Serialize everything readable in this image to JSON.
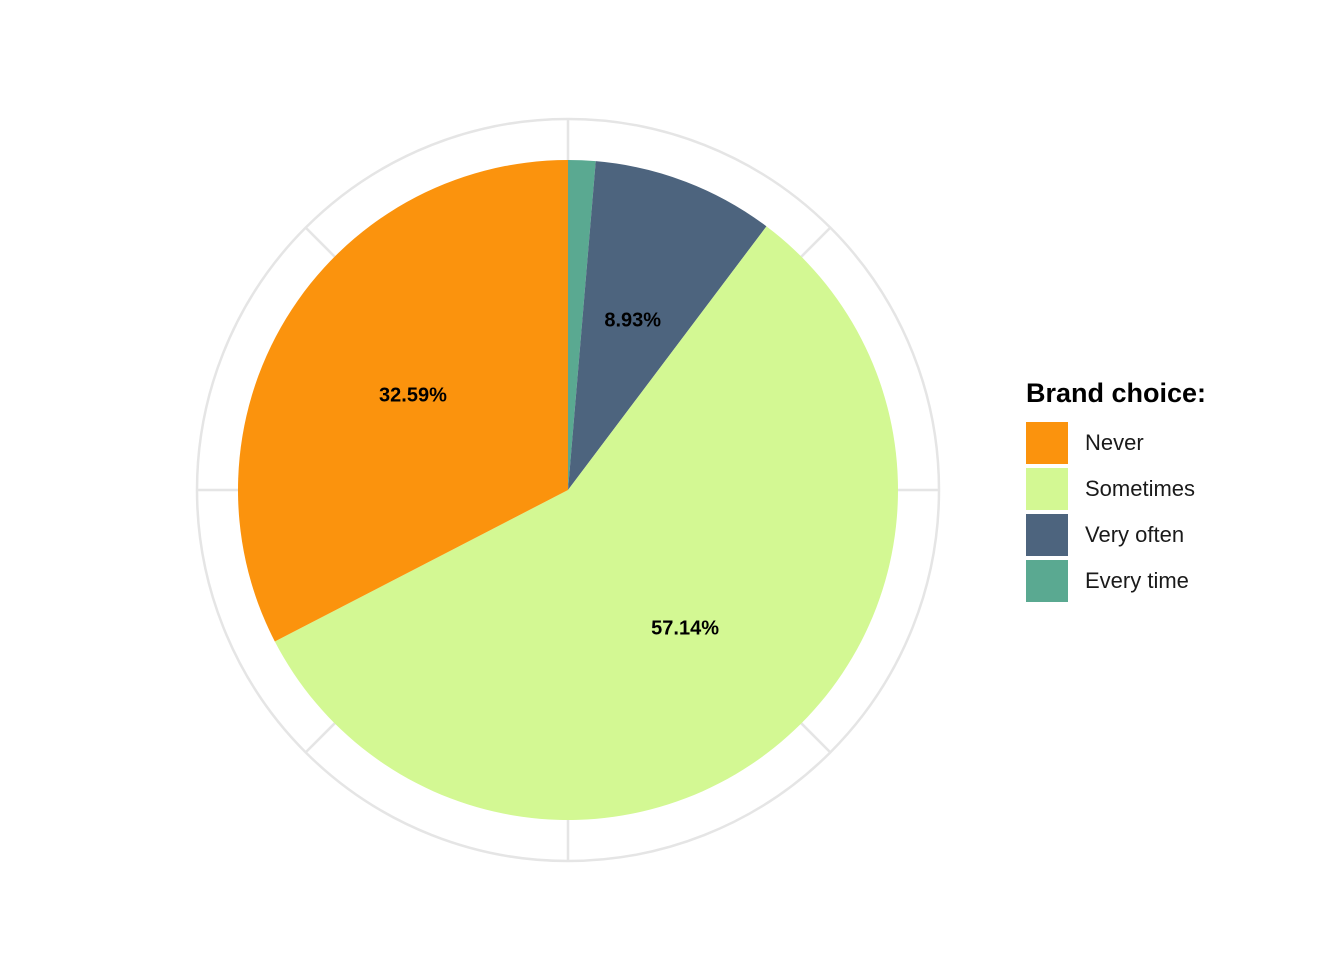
{
  "chart_data": {
    "type": "pie",
    "title": "",
    "legend": {
      "title": "Brand choice:",
      "placement": "right"
    },
    "categories": [
      "Every time",
      "Very often",
      "Sometimes",
      "Never"
    ],
    "values": [
      1.34,
      8.93,
      57.14,
      32.59
    ],
    "unit": "%",
    "data_labels": [
      "",
      "8.93%",
      "57.14%",
      "32.59%"
    ],
    "colors": [
      "#5aa991",
      "#4d647e",
      "#d3f893",
      "#fb930d"
    ],
    "legend_order": [
      "Never",
      "Sometimes",
      "Very often",
      "Every time"
    ],
    "start_angle": "12 o'clock",
    "direction": "clockwise",
    "grid": true
  }
}
